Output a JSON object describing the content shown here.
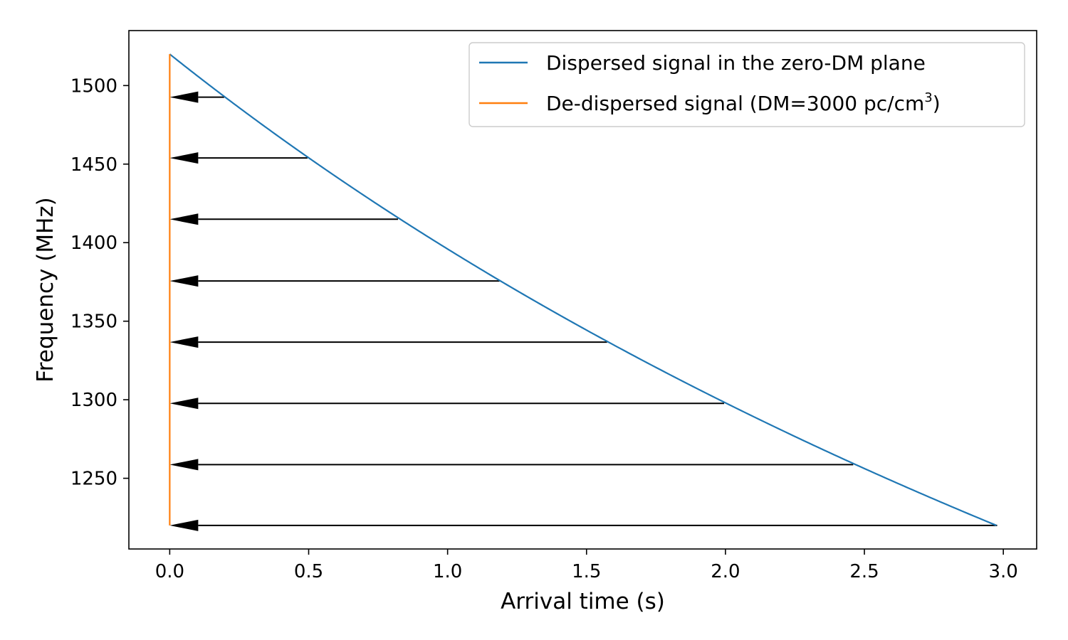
{
  "chart_data": {
    "type": "line",
    "xlabel": "Arrival time (s)",
    "ylabel": "Frequency (MHz)",
    "xlim": [
      -0.147,
      3.12
    ],
    "ylim": [
      1205,
      1535
    ],
    "xticks": [
      0.0,
      0.5,
      1.0,
      1.5,
      2.0,
      2.5,
      3.0
    ],
    "xtick_labels": [
      "0.0",
      "0.5",
      "1.0",
      "1.5",
      "2.0",
      "2.5",
      "3.0"
    ],
    "yticks": [
      1250,
      1300,
      1350,
      1400,
      1450,
      1500
    ],
    "ytick_labels": [
      "1250",
      "1300",
      "1350",
      "1400",
      "1450",
      "1500"
    ],
    "grid": false,
    "legend_position": "top-right",
    "series": [
      {
        "name": "Dispersed signal in the zero-DM plane",
        "color": "#1f77b4",
        "dm": 3000,
        "f_top": 1520,
        "f_bottom": 1220,
        "dispersion_constant": 4148.808,
        "x": [
          0.0,
          0.1963,
          0.4958,
          0.8216,
          1.1867,
          1.5739,
          1.9952,
          2.4597,
          2.9778
        ],
        "y": [
          1520,
          1492.6,
          1453.9,
          1414.9,
          1375.6,
          1336.7,
          1297.7,
          1258.7,
          1220
        ]
      },
      {
        "name": "De-dispersed signal (DM=3000 pc/cm",
        "name_superscript": "3",
        "name_suffix": ")",
        "color": "#ff7f0e",
        "x": [
          0.0,
          0.0
        ],
        "y": [
          1220,
          1520
        ]
      }
    ],
    "arrows": {
      "color": "#000000",
      "y": [
        1492.6,
        1453.9,
        1414.9,
        1375.6,
        1336.7,
        1297.7,
        1258.7,
        1220
      ],
      "x_start": [
        0.1963,
        0.4958,
        0.8216,
        1.1867,
        1.5739,
        1.9952,
        2.4597,
        2.9778
      ],
      "x_end": 0.0
    }
  }
}
